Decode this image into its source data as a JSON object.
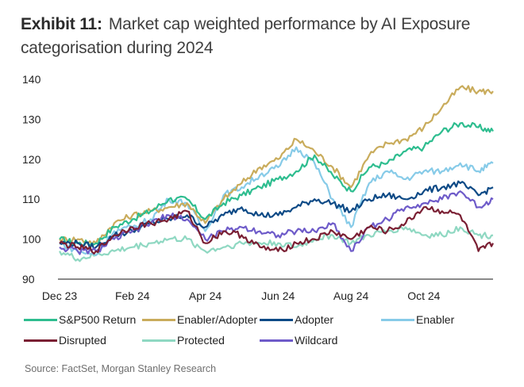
{
  "header": {
    "exhibit_label": "Exhibit 11:",
    "title": "Market cap weighted performance by AI Exposure categorisation during 2024"
  },
  "source": "Source: FactSet, Morgan Stanley Research",
  "chart_data": {
    "type": "line",
    "title": "Market cap weighted performance by AI Exposure categorisation during 2024",
    "xlabel": "",
    "ylabel": "",
    "ylim": [
      90,
      140
    ],
    "yticks": [
      90,
      100,
      110,
      120,
      130,
      140
    ],
    "xtick_labels": [
      "Dec 23",
      "Feb 24",
      "Apr 24",
      "Jun 24",
      "Aug 24",
      "Oct 24"
    ],
    "xtick_positions": [
      0,
      2,
      4,
      6,
      8,
      10
    ],
    "xlim": [
      0,
      11.9
    ],
    "grid": false,
    "legend": "bottom",
    "x": [
      0,
      0.5,
      1,
      1.5,
      2,
      2.5,
      3,
      3.5,
      4,
      4.5,
      5,
      5.5,
      6,
      6.5,
      7,
      7.5,
      8,
      8.5,
      9,
      9.5,
      10,
      10.5,
      11,
      11.5,
      11.9
    ],
    "x_unit": "months since Dec 23",
    "series": [
      {
        "name": "S&P500 Return",
        "color": "#2ebd8f",
        "values": [
          100,
          99,
          99,
          103,
          105,
          107,
          110,
          110,
          105,
          109,
          111,
          113,
          115,
          117,
          121,
          116,
          112,
          118,
          119,
          122,
          123,
          127,
          129,
          128,
          127
        ]
      },
      {
        "name": "Enabler/Adopter",
        "color": "#c9ac5c",
        "values": [
          100,
          100,
          99,
          104,
          106,
          107,
          108,
          109,
          104,
          110,
          114,
          118,
          120,
          125,
          122,
          118,
          113,
          121,
          124,
          125,
          128,
          133,
          138,
          137,
          137
        ]
      },
      {
        "name": "Adopter",
        "color": "#0d4a86",
        "values": [
          99,
          99,
          98,
          101,
          102,
          104,
          105,
          106,
          103,
          106,
          108,
          106,
          106,
          108,
          110,
          109,
          107,
          110,
          111,
          110,
          112,
          113,
          114,
          111,
          113
        ]
      },
      {
        "name": "Enabler",
        "color": "#87cbe8",
        "values": [
          99,
          97,
          96,
          102,
          103,
          105,
          110,
          109,
          102,
          111,
          113,
          116,
          118,
          123,
          119,
          110,
          103,
          114,
          117,
          115,
          117,
          117,
          119,
          117,
          119
        ]
      },
      {
        "name": "Disrupted",
        "color": "#7a1f33",
        "values": [
          99,
          98,
          97,
          101,
          103,
          104,
          105,
          107,
          99,
          102,
          101,
          98,
          97,
          99,
          100,
          102,
          100,
          103,
          102,
          104,
          108,
          107,
          106,
          97,
          99
        ]
      },
      {
        "name": "Protected",
        "color": "#8fd8c2",
        "values": [
          97,
          95,
          96,
          97,
          98,
          99,
          100,
          100,
          97,
          98,
          99,
          99,
          99,
          98,
          100,
          101,
          99,
          101,
          102,
          103,
          101,
          101,
          103,
          101,
          101
        ]
      },
      {
        "name": "Wildcard",
        "color": "#6e5bc9",
        "values": [
          98,
          97,
          97,
          100,
          102,
          104,
          106,
          105,
          100,
          102,
          103,
          102,
          101,
          102,
          102,
          104,
          97,
          103,
          105,
          108,
          109,
          110,
          112,
          108,
          110
        ]
      }
    ]
  }
}
